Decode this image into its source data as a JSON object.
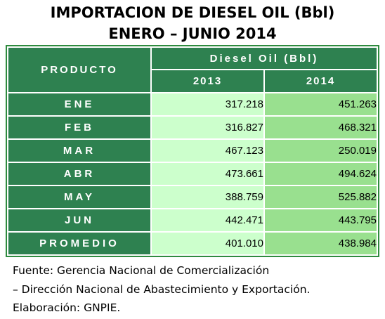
{
  "title_line1": "IMPORTACION DE DIESEL OIL (Bbl)",
  "title_line2": "ENERO – JUNIO 2014",
  "table": {
    "col_product": "PRODUCTO",
    "col_group": "Diesel Oil (Bbl)",
    "years": [
      "2013",
      "2014"
    ],
    "rows": [
      {
        "label": "ENE",
        "v2013": "317.218",
        "v2014": "451.263"
      },
      {
        "label": "FEB",
        "v2013": "316.827",
        "v2014": "468.321"
      },
      {
        "label": "MAR",
        "v2013": "467.123",
        "v2014": "250.019"
      },
      {
        "label": "ABR",
        "v2013": "473.661",
        "v2014": "494.624"
      },
      {
        "label": "MAY",
        "v2013": "388.759",
        "v2014": "525.882"
      },
      {
        "label": "JUN",
        "v2013": "442.471",
        "v2014": "443.795"
      },
      {
        "label": "PROMEDIO",
        "v2013": "401.010",
        "v2014": "438.984"
      }
    ]
  },
  "footnote": {
    "line1": "Fuente: Gerencia Nacional de Comercialización",
    "line2": "– Dirección Nacional de Abastecimiento y Exportación.",
    "line3": "Elaboración: GNPIE."
  },
  "colors": {
    "header_bg": "#2e8150",
    "col2013_bg": "#ccffcc",
    "col2014_bg": "#99e08f"
  }
}
